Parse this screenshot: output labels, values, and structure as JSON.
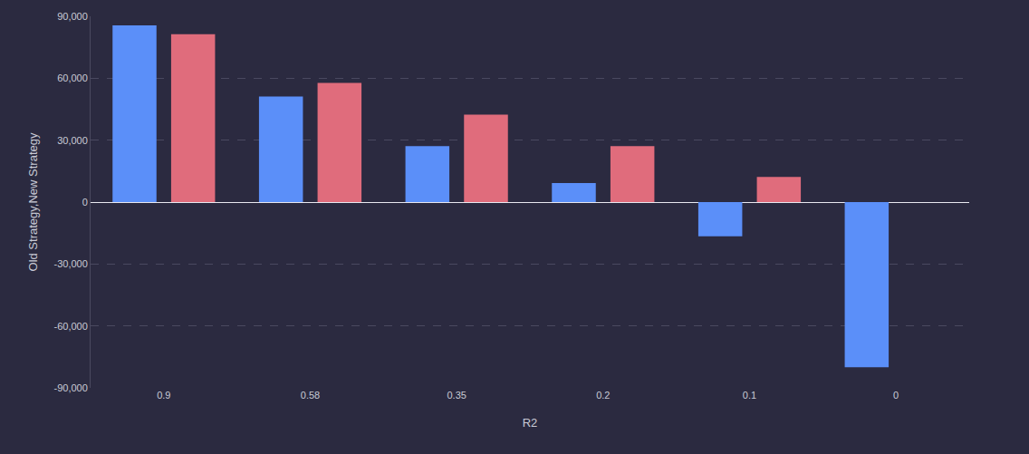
{
  "chart_data": {
    "type": "bar",
    "x_label": "R2",
    "y_label": "Old Strategy,New Strategy",
    "categories": [
      "0.9",
      "0.58",
      "0.35",
      "0.2",
      "0.1",
      "0"
    ],
    "series": [
      {
        "name": "Old Strategy",
        "color": "#5b8ff9",
        "values": [
          85600,
          51100,
          27100,
          9200,
          -16600,
          -80000
        ]
      },
      {
        "name": "New Strategy",
        "color": "#e06c7c",
        "values": [
          81300,
          57700,
          42400,
          27100,
          12200,
          0
        ]
      }
    ],
    "ylim": [
      -90000,
      90000
    ],
    "yticks": [
      {
        "value": -90000,
        "label": "-90,000"
      },
      {
        "value": -60000,
        "label": "-60,000"
      },
      {
        "value": -30000,
        "label": "-30,000"
      },
      0,
      {
        "value": 30000,
        "label": "30,000"
      },
      {
        "value": 60000,
        "label": "60,000"
      },
      {
        "value": 90000,
        "label": "90,000"
      }
    ],
    "grid": true
  }
}
